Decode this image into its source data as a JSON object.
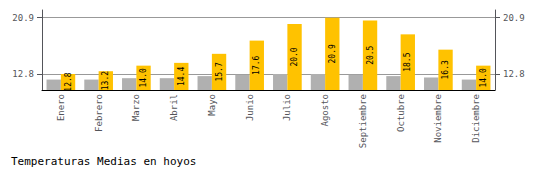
{
  "chart_data": {
    "type": "bar",
    "title": "Temperaturas Medias en hoyos",
    "categories": [
      "Enero",
      "Febrero",
      "Marzo",
      "Abril",
      "Mayo",
      "Junio",
      "Julio",
      "Agosto",
      "Septiembre",
      "Octubre",
      "Noviembre",
      "Diciembre"
    ],
    "series": [
      {
        "color": "#B0B0B0",
        "values": [
          12.0,
          12.0,
          12.2,
          12.2,
          12.5,
          12.7,
          12.8,
          12.8,
          12.7,
          12.5,
          12.3,
          12.0
        ]
      },
      {
        "color": "#FFC200",
        "values": [
          12.8,
          13.2,
          14.0,
          14.4,
          15.7,
          17.6,
          20.0,
          20.9,
          20.5,
          18.5,
          16.3,
          14.0
        ],
        "data_labels": true,
        "value_labels": [
          "12.8",
          "13.2",
          "14.0",
          "14.4",
          "15.7",
          "17.6",
          "20.0",
          "20.9",
          "20.5",
          "18.5",
          "16.3",
          "14.0"
        ]
      }
    ],
    "ylim": [
      10.5,
      22.0
    ],
    "yticks": [
      12.8,
      20.9
    ],
    "y2lim": [
      10.5,
      22.0
    ],
    "y2ticks": [
      12.8,
      20.9
    ],
    "grid": true
  }
}
